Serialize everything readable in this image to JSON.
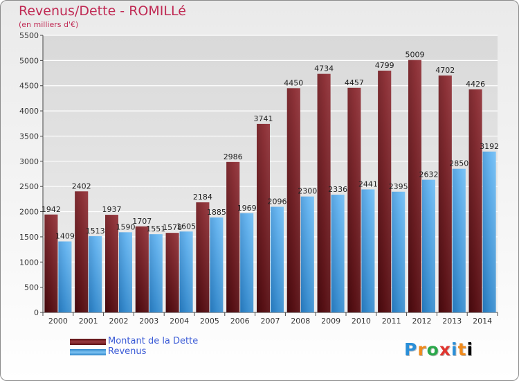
{
  "header": {
    "title": "Revenus/Dette - ROMILLé",
    "subtitle": "(en milliers d'€)"
  },
  "colors": {
    "dette": "#7a1f25",
    "revenus": "#4ca3e6",
    "grid": "#ffffff"
  },
  "chart_data": {
    "type": "bar",
    "title": "Revenus/Dette - ROMILLé",
    "ylabel": "(en milliers d'€)",
    "xlabel": "",
    "categories": [
      "2000",
      "2001",
      "2002",
      "2003",
      "2004",
      "2005",
      "2006",
      "2007",
      "2008",
      "2009",
      "2010",
      "2011",
      "2012",
      "2013",
      "2014"
    ],
    "series": [
      {
        "name": "Montant de la Dette",
        "values": [
          1942,
          2402,
          1937,
          1707,
          1578,
          2184,
          2986,
          3741,
          4450,
          4734,
          4457,
          4799,
          5009,
          4702,
          4426
        ]
      },
      {
        "name": "Revenus",
        "values": [
          1409,
          1513,
          1590,
          1551,
          1605,
          1885,
          1969,
          2096,
          2300,
          2336,
          2441,
          2395,
          2632,
          2850,
          3192
        ]
      }
    ],
    "ylim": [
      0,
      5500
    ],
    "yticks": [
      0,
      500,
      1000,
      1500,
      2000,
      2500,
      3000,
      3500,
      4000,
      4500,
      5000,
      5500
    ],
    "grid": true,
    "legend_position": "bottom-left"
  },
  "legend": {
    "dette_label": "Montant de la Dette",
    "revenus_label": "Revenus"
  },
  "logo": {
    "letters": [
      "P",
      "r",
      "o",
      "x",
      "i",
      "t",
      "i"
    ]
  }
}
